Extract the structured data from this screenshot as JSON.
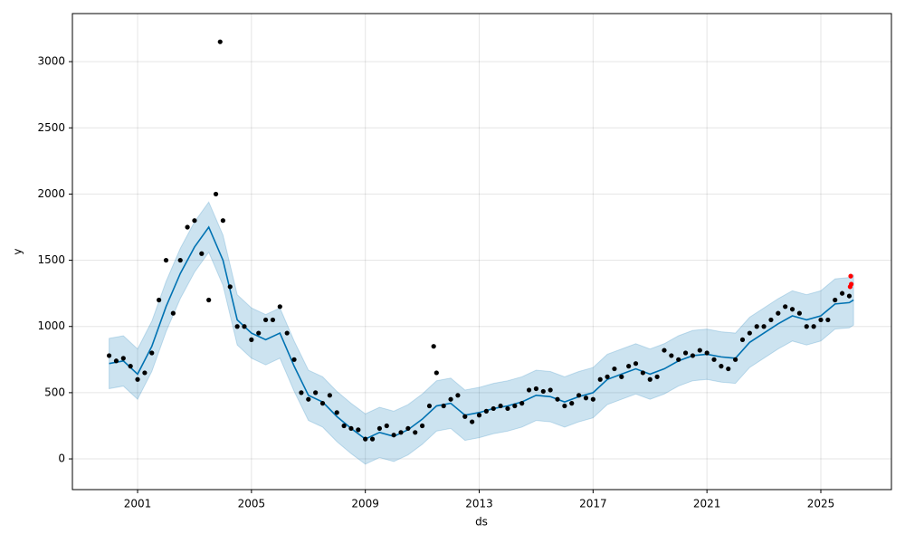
{
  "chart_data": {
    "type": "forecast",
    "x_label": "ds",
    "y_label": "y",
    "xlim": [
      1998.71,
      2027.48
    ],
    "ylim": [
      -232,
      3363
    ],
    "xticks": [
      2001,
      2005,
      2009,
      2013,
      2017,
      2021,
      2025
    ],
    "yticks": [
      0,
      500,
      1000,
      1500,
      2000,
      2500,
      3000
    ],
    "grid": true,
    "series": [
      {
        "type": "band",
        "color": "#0072B2",
        "x": [
          2000.0,
          2000.5,
          2001.0,
          2001.5,
          2002.0,
          2002.5,
          2003.0,
          2003.5,
          2004.0,
          2004.5,
          2005.0,
          2005.5,
          2006.0,
          2006.5,
          2007.0,
          2007.5,
          2008.0,
          2008.5,
          2009.0,
          2009.5,
          2010.0,
          2010.5,
          2011.0,
          2011.5,
          2012.0,
          2012.5,
          2013.0,
          2013.5,
          2014.0,
          2014.5,
          2015.0,
          2015.5,
          2016.0,
          2016.5,
          2017.0,
          2017.5,
          2018.0,
          2018.5,
          2019.0,
          2019.5,
          2020.0,
          2020.5,
          2021.0,
          2021.5,
          2022.0,
          2022.5,
          2023.0,
          2023.5,
          2024.0,
          2024.5,
          2025.0,
          2025.5,
          2026.0,
          2026.15
        ],
        "lower": [
          530,
          550,
          450,
          660,
          960,
          1210,
          1410,
          1560,
          1310,
          860,
          760,
          710,
          760,
          510,
          290,
          240,
          130,
          40,
          -40,
          10,
          -20,
          30,
          110,
          210,
          230,
          140,
          160,
          190,
          210,
          240,
          290,
          280,
          240,
          280,
          310,
          410,
          450,
          490,
          450,
          490,
          550,
          590,
          600,
          580,
          570,
          690,
          760,
          830,
          890,
          860,
          890,
          980,
          990,
          1010
        ],
        "upper": [
          910,
          930,
          830,
          1040,
          1340,
          1590,
          1790,
          1940,
          1690,
          1240,
          1140,
          1090,
          1140,
          890,
          670,
          620,
          510,
          420,
          340,
          390,
          360,
          410,
          490,
          590,
          610,
          520,
          540,
          570,
          590,
          620,
          670,
          660,
          620,
          660,
          690,
          790,
          830,
          870,
          830,
          870,
          930,
          970,
          980,
          960,
          950,
          1070,
          1140,
          1210,
          1270,
          1240,
          1270,
          1360,
          1370,
          1390
        ]
      },
      {
        "type": "line",
        "color": "#0072B2",
        "x": [
          2000.0,
          2000.5,
          2001.0,
          2001.5,
          2002.0,
          2002.5,
          2003.0,
          2003.5,
          2004.0,
          2004.5,
          2005.0,
          2005.5,
          2006.0,
          2006.5,
          2007.0,
          2007.5,
          2008.0,
          2008.5,
          2009.0,
          2009.5,
          2010.0,
          2010.5,
          2011.0,
          2011.5,
          2012.0,
          2012.5,
          2013.0,
          2013.5,
          2014.0,
          2014.5,
          2015.0,
          2015.5,
          2016.0,
          2016.5,
          2017.0,
          2017.5,
          2018.0,
          2018.5,
          2019.0,
          2019.5,
          2020.0,
          2020.5,
          2021.0,
          2021.5,
          2022.0,
          2022.5,
          2023.0,
          2023.5,
          2024.0,
          2024.5,
          2025.0,
          2025.5,
          2026.0,
          2026.15
        ],
        "values": [
          720,
          740,
          640,
          850,
          1150,
          1400,
          1600,
          1750,
          1500,
          1050,
          950,
          900,
          950,
          700,
          480,
          430,
          320,
          230,
          150,
          200,
          170,
          220,
          300,
          400,
          420,
          330,
          350,
          380,
          400,
          430,
          480,
          470,
          430,
          470,
          500,
          600,
          640,
          680,
          640,
          680,
          740,
          780,
          790,
          770,
          760,
          880,
          950,
          1020,
          1080,
          1050,
          1080,
          1170,
          1180,
          1200
        ]
      },
      {
        "type": "scatter",
        "color": "#000000",
        "x": [
          2000.0,
          2000.25,
          2000.5,
          2000.75,
          2001.0,
          2001.25,
          2001.5,
          2001.75,
          2002.0,
          2002.25,
          2002.5,
          2002.75,
          2003.0,
          2003.25,
          2003.5,
          2003.75,
          2003.9,
          2004.0,
          2004.25,
          2004.5,
          2004.75,
          2005.0,
          2005.25,
          2005.5,
          2005.75,
          2006.0,
          2006.25,
          2006.5,
          2006.75,
          2007.0,
          2007.25,
          2007.5,
          2007.75,
          2008.0,
          2008.25,
          2008.5,
          2008.75,
          2009.0,
          2009.25,
          2009.5,
          2009.75,
          2010.0,
          2010.25,
          2010.5,
          2010.75,
          2011.0,
          2011.25,
          2011.4,
          2011.5,
          2011.75,
          2012.0,
          2012.25,
          2012.5,
          2012.75,
          2013.0,
          2013.25,
          2013.5,
          2013.75,
          2014.0,
          2014.25,
          2014.5,
          2014.75,
          2015.0,
          2015.25,
          2015.5,
          2015.75,
          2016.0,
          2016.25,
          2016.5,
          2016.75,
          2017.0,
          2017.25,
          2017.5,
          2017.75,
          2018.0,
          2018.25,
          2018.5,
          2018.75,
          2019.0,
          2019.25,
          2019.5,
          2019.75,
          2020.0,
          2020.25,
          2020.5,
          2020.75,
          2021.0,
          2021.25,
          2021.5,
          2021.75,
          2022.0,
          2022.25,
          2022.5,
          2022.75,
          2023.0,
          2023.25,
          2023.5,
          2023.75,
          2024.0,
          2024.25,
          2024.5,
          2024.75,
          2025.0,
          2025.25,
          2025.5,
          2025.75,
          2026.0
        ],
        "values": [
          780,
          740,
          760,
          700,
          600,
          650,
          800,
          1200,
          1500,
          1100,
          1500,
          1750,
          1800,
          1550,
          1200,
          2000,
          3150,
          1800,
          1300,
          1000,
          1000,
          900,
          950,
          1050,
          1050,
          1150,
          950,
          750,
          500,
          450,
          500,
          420,
          480,
          350,
          250,
          230,
          220,
          150,
          150,
          230,
          250,
          180,
          200,
          230,
          200,
          250,
          400,
          850,
          650,
          400,
          450,
          480,
          320,
          280,
          330,
          360,
          380,
          400,
          380,
          400,
          420,
          520,
          530,
          510,
          520,
          450,
          400,
          420,
          480,
          460,
          450,
          600,
          620,
          680,
          620,
          700,
          720,
          650,
          600,
          620,
          820,
          780,
          750,
          800,
          780,
          820,
          800,
          750,
          700,
          680,
          750,
          900,
          950,
          1000,
          1000,
          1050,
          1100,
          1150,
          1130,
          1100,
          1000,
          1000,
          1050,
          1050,
          1200,
          1250,
          1230
        ]
      },
      {
        "type": "scatter",
        "color": "#ff0000",
        "x": [
          2026.03,
          2026.05,
          2026.07
        ],
        "values": [
          1300,
          1380,
          1320
        ]
      }
    ]
  }
}
